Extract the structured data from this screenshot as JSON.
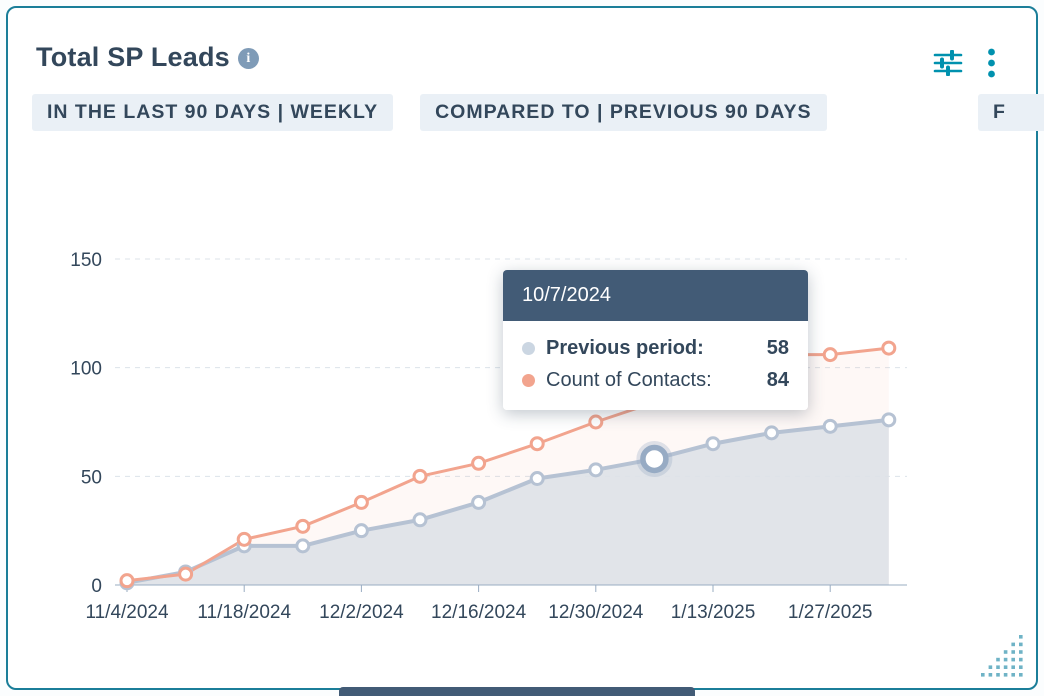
{
  "header": {
    "title": "Total SP Leads",
    "info_glyph": "i"
  },
  "filters": [
    {
      "label": "IN THE LAST 90 DAYS | WEEKLY",
      "clipped": false
    },
    {
      "label": "COMPARED TO | PREVIOUS 90 DAYS",
      "clipped": false
    },
    {
      "label": "F",
      "clipped": true
    }
  ],
  "tooltip": {
    "date": "10/7/2024",
    "rows": [
      {
        "label": "Previous period:",
        "value": "58",
        "dot_color": "#cbd6e2",
        "bold": true
      },
      {
        "label": "Count of Contacts:",
        "value": "84",
        "dot_color": "#f2a48e",
        "bold": false
      }
    ]
  },
  "chart_data": {
    "type": "line",
    "title": "Total SP Leads",
    "x": [
      "11/4/2024",
      "11/11/2024",
      "11/18/2024",
      "11/25/2024",
      "12/2/2024",
      "12/9/2024",
      "12/16/2024",
      "12/23/2024",
      "12/30/2024",
      "1/6/2025",
      "1/13/2025",
      "1/20/2025",
      "1/27/2025",
      "2/3/2025"
    ],
    "x_tick_labels": [
      "11/4/2024",
      "11/18/2024",
      "12/2/2024",
      "12/16/2024",
      "12/30/2024",
      "1/13/2025",
      "1/27/2025"
    ],
    "x_tick_indices": [
      0,
      2,
      4,
      6,
      8,
      10,
      12
    ],
    "yticks": [
      0,
      50,
      100,
      150
    ],
    "ylim": [
      0,
      150
    ],
    "grid": "horizontal-dashed",
    "legend": "none",
    "series": [
      {
        "name": "Previous period",
        "color": "#b6c2d3",
        "fill": "rgba(222,225,232,0.9)",
        "values": [
          1,
          6,
          18,
          18,
          25,
          30,
          38,
          49,
          53,
          58,
          65,
          70,
          73,
          76
        ],
        "highlight_index": 9
      },
      {
        "name": "Count of Contacts",
        "color": "#f2a48e",
        "fill": "rgba(242,164,142,0.08)",
        "values": [
          2,
          5,
          21,
          27,
          38,
          50,
          56,
          65,
          75,
          84,
          95,
          106,
          106,
          109
        ]
      }
    ]
  },
  "colors": {
    "card_border": "#1b7e99",
    "accent_teal": "#0091ae",
    "title_text": "#33475b",
    "chip_bg": "#eaf0f6",
    "chip_text": "#33475b",
    "tooltip_header_bg": "#425b76",
    "axis_text": "#33475b",
    "gridline": "#dce3ea",
    "bottom_bar": "#425b76"
  }
}
